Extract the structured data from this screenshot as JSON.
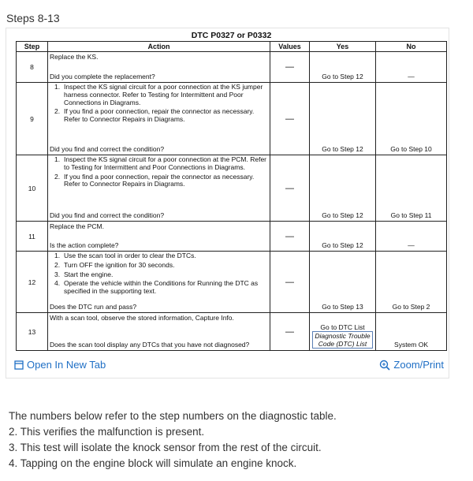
{
  "header": {
    "title": "Steps 8-13"
  },
  "table": {
    "caption": "DTC P0327 or P0332",
    "columns": [
      "Step",
      "Action",
      "Values",
      "Yes",
      "No"
    ],
    "rows": [
      {
        "step": 8,
        "action": [
          {
            "text": "Replace the KS."
          }
        ],
        "question": "Did you complete the replacement?",
        "value": "—",
        "yes": "Go to Step 12",
        "no": "—"
      },
      {
        "step": 9,
        "action": [
          {
            "num": "1.",
            "text": "Inspect the KS signal circuit for a poor connection at the KS jumper harness connector. Refer to Testing for Intermittent and Poor Connections in Diagrams."
          },
          {
            "num": "2.",
            "text": "If you find a poor connection, repair the connector as necessary. Refer to Connector Repairs in Diagrams."
          }
        ],
        "question": "Did you find and correct the condition?",
        "value": "—",
        "yes": "Go to Step 12",
        "no": "Go to Step 10"
      },
      {
        "step": 10,
        "action": [
          {
            "num": "1.",
            "text": "Inspect the KS signal circuit for a poor connection at the PCM. Refer to Testing for Intermittent and Poor Connections in Diagrams."
          },
          {
            "num": "2.",
            "text": "If you find a poor connection, repair the connector as necessary. Refer to Connector Repairs in Diagrams."
          }
        ],
        "question": "Did you find and correct the condition?",
        "value": "—",
        "yes": "Go to Step 12",
        "no": "Go to Step 11"
      },
      {
        "step": 11,
        "action": [
          {
            "text": "Replace the PCM."
          }
        ],
        "question": "Is the action complete?",
        "value": "—",
        "yes": "Go to Step 12",
        "no": "—"
      },
      {
        "step": 12,
        "action": [
          {
            "num": "1.",
            "text": "Use the scan tool in order to clear the DTCs."
          },
          {
            "num": "2.",
            "text": "Turn OFF the ignition for 30 seconds."
          },
          {
            "num": "3.",
            "text": "Start the engine."
          },
          {
            "num": "4.",
            "text": "Operate the vehicle within the Conditions for Running the DTC as specified in the supporting text."
          }
        ],
        "question": "Does the DTC run and pass?",
        "value": "—",
        "yes": "Go to Step 13",
        "no": "Go to Step 2"
      },
      {
        "step": 13,
        "action": [
          {
            "text": "With a scan tool, observe the stored information, Capture Info."
          }
        ],
        "question": "Does the scan tool display any DTCs that you have not diagnosed?",
        "value": "—",
        "yes": "Go to DTC List",
        "yes_link": "Diagnostic Trouble Code (DTC) List",
        "no": "System OK"
      }
    ]
  },
  "links": {
    "open": "Open In New Tab",
    "zoom": "Zoom/Print"
  },
  "notes": {
    "intro": "The numbers below refer to the step numbers on the diagnostic table.",
    "items": [
      "2. This verifies the malfunction is present.",
      "3. This test will isolate the knock sensor from the rest of the circuit.",
      "4. Tapping on the engine block will simulate an engine knock."
    ]
  }
}
